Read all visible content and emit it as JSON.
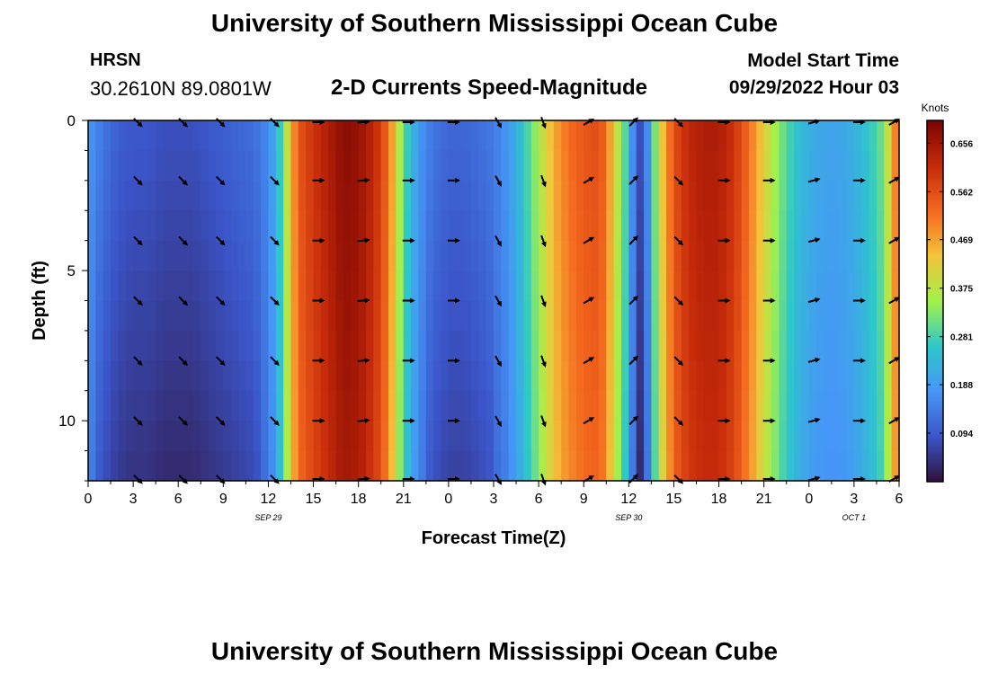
{
  "header": {
    "title": "University of Southern Mississippi Ocean Cube",
    "station": "HRSN",
    "coords": "30.2610N  89.0801W",
    "subtitle": "2-D Currents Speed-Magnitude",
    "model_start_label": "Model Start Time",
    "model_start_value": "09/29/2022 Hour 03"
  },
  "footer": {
    "title": "University of Southern Mississippi Ocean Cube"
  },
  "chart_data": {
    "type": "heatmap",
    "xlabel": "Forecast Time(Z)",
    "ylabel": "Depth (ft)",
    "x_range_hours": [
      0,
      54
    ],
    "y_range_ft": [
      0,
      12
    ],
    "x_tick_hours": [
      0,
      3,
      6,
      9,
      12,
      15,
      18,
      21,
      24,
      27,
      30,
      33,
      36,
      39,
      42,
      45,
      48,
      51,
      54
    ],
    "x_tick_labels": [
      "0",
      "3",
      "6",
      "9",
      "12",
      "15",
      "18",
      "21",
      "0",
      "3",
      "6",
      "9",
      "12",
      "15",
      "18",
      "21",
      "0",
      "3",
      "6"
    ],
    "y_tick_values": [
      0,
      5,
      10
    ],
    "y_tick_labels": [
      "0",
      "5",
      "10"
    ],
    "date_labels": [
      {
        "hour": 12,
        "text": "SEP 29"
      },
      {
        "hour": 36,
        "text": "SEP 30"
      },
      {
        "hour": 51,
        "text": "OCT 1"
      }
    ],
    "colorbar": {
      "unit": "Knots",
      "min": 0.0,
      "max": 0.7,
      "tick_values": [
        0.094,
        0.188,
        0.281,
        0.375,
        0.469,
        0.562,
        0.656
      ],
      "tick_labels": [
        "0.094",
        "0.188",
        "0.281",
        "0.375",
        "0.469",
        "0.562",
        "0.656"
      ],
      "colors": [
        "#30123b",
        "#3b55c9",
        "#4696f7",
        "#2dc8c9",
        "#a3f04a",
        "#f3c43a",
        "#f4671e",
        "#c52a0a",
        "#7a0403"
      ]
    },
    "speed_profile": {
      "hours": [
        0,
        1,
        2,
        3,
        4,
        5,
        6,
        7,
        8,
        9,
        10,
        11,
        12,
        12.5,
        13,
        13.5,
        14,
        15,
        16,
        17,
        18,
        19,
        19.5,
        20,
        20.5,
        21,
        22,
        23,
        24,
        25,
        26,
        27,
        28,
        29,
        30,
        31,
        32,
        33,
        34,
        34.5,
        35,
        36,
        36.5,
        37,
        38,
        39,
        40,
        41,
        42,
        43,
        44,
        45,
        46,
        47,
        48,
        49,
        50,
        51,
        52,
        53,
        53.5,
        54
      ],
      "knots": [
        0.18,
        0.13,
        0.1,
        0.09,
        0.09,
        0.08,
        0.08,
        0.08,
        0.09,
        0.1,
        0.11,
        0.12,
        0.16,
        0.22,
        0.32,
        0.45,
        0.55,
        0.6,
        0.64,
        0.68,
        0.67,
        0.62,
        0.58,
        0.52,
        0.42,
        0.3,
        0.18,
        0.13,
        0.11,
        0.11,
        0.12,
        0.14,
        0.18,
        0.26,
        0.36,
        0.46,
        0.52,
        0.55,
        0.56,
        0.52,
        0.42,
        0.25,
        0.08,
        0.08,
        0.4,
        0.56,
        0.62,
        0.64,
        0.64,
        0.6,
        0.52,
        0.42,
        0.33,
        0.26,
        0.22,
        0.2,
        0.2,
        0.22,
        0.26,
        0.32,
        0.45,
        0.55
      ]
    },
    "vectors": {
      "column_hours": [
        3.3,
        6.3,
        8.8,
        12.4,
        15.3,
        18.3,
        21.3,
        24.3,
        27.3,
        30.3,
        33.3,
        36.3,
        39.3,
        42.3,
        45.3,
        48.3,
        51.3,
        54
      ],
      "row_depths_ft": [
        0,
        2,
        4,
        6,
        8,
        10,
        12
      ],
      "directions_deg": [
        135,
        135,
        135,
        135,
        90,
        85,
        90,
        90,
        150,
        160,
        60,
        45,
        135,
        90,
        90,
        75,
        90,
        60
      ]
    }
  }
}
